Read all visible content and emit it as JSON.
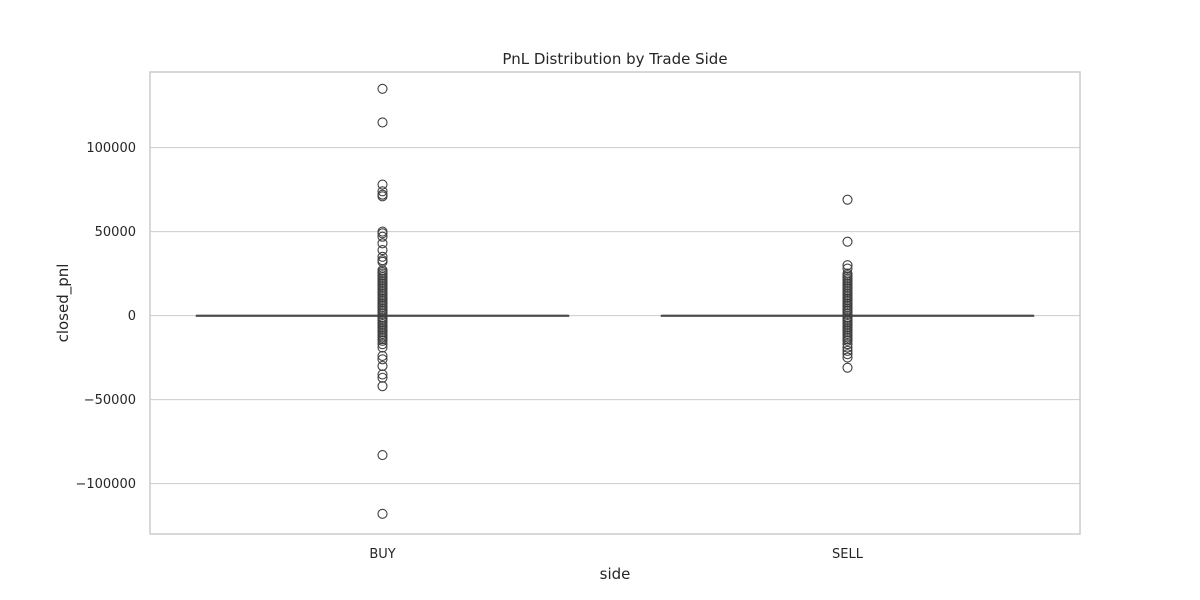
{
  "chart_data": {
    "type": "box",
    "title": "PnL Distribution by Trade Side",
    "xlabel": "side",
    "ylabel": "closed_pnl",
    "categories": [
      "BUY",
      "SELL"
    ],
    "ylim": [
      -130000,
      145000
    ],
    "yticks": [
      -100000,
      -50000,
      0,
      50000,
      100000
    ],
    "ytick_labels": [
      "−100000",
      "−50000",
      "0",
      "50000",
      "100000"
    ],
    "grid": true,
    "boxes": [
      {
        "category": "BUY",
        "whisker_low": 0,
        "q1": 0,
        "median": 0,
        "q3": 0,
        "whisker_high": 0,
        "fliers": [
          135000,
          115000,
          78000,
          74000,
          72000,
          71000,
          50000,
          49000,
          47000,
          43000,
          39000,
          35000,
          33000,
          32000,
          27000,
          26000,
          25000,
          24000,
          23000,
          22000,
          21000,
          20000,
          19000,
          18000,
          17000,
          16000,
          15000,
          14000,
          13000,
          12000,
          11000,
          10000,
          9000,
          8000,
          7000,
          6000,
          5000,
          4000,
          3000,
          2000,
          1000,
          -1000,
          -2000,
          -3000,
          -4000,
          -5000,
          -6000,
          -7000,
          -8000,
          -9000,
          -10000,
          -11000,
          -12000,
          -13000,
          -14000,
          -15000,
          -17000,
          -19000,
          -24000,
          -26000,
          -30000,
          -35000,
          -37000,
          -42000,
          -83000,
          -118000
        ]
      },
      {
        "category": "SELL",
        "whisker_low": 0,
        "q1": 0,
        "median": 0,
        "q3": 0,
        "whisker_high": 0,
        "fliers": [
          69000,
          44000,
          30000,
          28000,
          25000,
          24000,
          23000,
          22000,
          21000,
          20000,
          19000,
          18000,
          17000,
          16000,
          15000,
          14000,
          13000,
          12000,
          11000,
          10000,
          9000,
          8000,
          7000,
          6000,
          5000,
          4000,
          3000,
          2000,
          1000,
          -1000,
          -2000,
          -3000,
          -4000,
          -5000,
          -6000,
          -7000,
          -8000,
          -9000,
          -10000,
          -11000,
          -12000,
          -13000,
          -14000,
          -15000,
          -17000,
          -19000,
          -21000,
          -23000,
          -25000,
          -31000
        ]
      }
    ]
  }
}
